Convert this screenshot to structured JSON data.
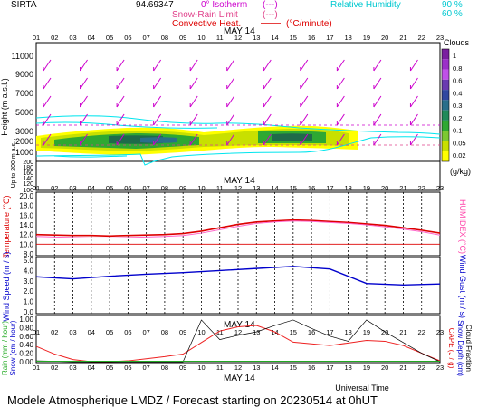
{
  "header": {
    "station": "SIRTA",
    "station_alt": "94.69347",
    "rh_label": "Relative Humidity",
    "rh_levels": [
      "90 %",
      "60 %"
    ],
    "legend_isotherm": "0° Isotherm",
    "legend_snow_rain": "Snow-Rain Limit",
    "legend_convective": "Convective Heat.",
    "legend_convective_unit": "(°C/minute)",
    "legend_iso_marker": "(---)",
    "legend_snow_marker": "(---)"
  },
  "footer": {
    "title": "Modele Atmospherique LMDZ / Forecast starting on 20230514 at 0hUT",
    "universal_time": "Universal Time"
  },
  "colors": {
    "rh_line": "#00e5ee",
    "isotherm": "#cc00cc",
    "snow_rain": "#e0408a",
    "convective": "#dd0000",
    "temperature": "#dd0000",
    "humidex": "#ff66cc",
    "wind_speed": "#0000cc",
    "rain": "#ee2222",
    "grid": "#000000"
  },
  "chart_data": [
    {
      "type": "heatmap",
      "panel": "clouds",
      "xlabel": "MAY 14",
      "x_hours": [
        "01",
        "02",
        "03",
        "04",
        "05",
        "06",
        "07",
        "08",
        "09",
        "10",
        "11",
        "12",
        "13",
        "14",
        "15",
        "16",
        "17",
        "18",
        "19",
        "20",
        "21",
        "22",
        "23"
      ],
      "ylabel": "Height (m a.s.l.)",
      "ylabel2": "Up to 200 m a.s.l.",
      "y_ticks_upper": [
        "11000",
        "9000",
        "7000",
        "5000",
        "3000",
        "2000",
        "1000"
      ],
      "y_ticks_lower": [
        "200",
        "180",
        "160",
        "140",
        "120",
        "100"
      ],
      "colorbar_title": "Clouds",
      "colorbar_unit": "(g/kg)",
      "colorbar_ticks": [
        "1",
        "0.8",
        "0.6",
        "0.4",
        "0.3",
        "0.2",
        "0.1",
        "0.05",
        "0.02"
      ],
      "colorbar_colors": [
        "#7a1fa0",
        "#9b30c8",
        "#c050e8",
        "#6a3ab0",
        "#3048a0",
        "#2a6e8a",
        "#1f8a5a",
        "#2ea832",
        "#7cc832",
        "#c8e000",
        "#ffff00"
      ],
      "cloud_base_m": 1000,
      "cloud_top_m": 2200,
      "isotherm_m": 2500,
      "wind_barb_rows": 5
    },
    {
      "type": "line",
      "panel": "temperature",
      "ylabel": "Temperature (°C)",
      "ylabel_right": "HUMIDEX (°C)",
      "y_ticks": [
        "20.0",
        "18.0",
        "16.0",
        "14.0",
        "12.0",
        "10.0",
        "8.0"
      ],
      "ylim": [
        8,
        20
      ],
      "x": [
        1,
        2,
        3,
        4,
        5,
        6,
        7,
        8,
        9,
        10,
        11,
        12,
        13,
        14,
        15,
        16,
        17,
        18,
        19,
        20,
        21,
        22,
        23
      ],
      "series": [
        {
          "name": "Temperature",
          "values": [
            12.0,
            11.9,
            11.8,
            11.8,
            11.7,
            11.8,
            11.9,
            12.0,
            12.2,
            12.7,
            13.4,
            14.1,
            14.6,
            14.8,
            15.0,
            14.9,
            14.7,
            14.5,
            14.2,
            13.9,
            13.4,
            12.9,
            12.3
          ]
        },
        {
          "name": "HUMIDEX",
          "values": [
            11.6,
            11.5,
            11.4,
            11.3,
            11.3,
            11.4,
            11.5,
            11.6,
            11.8,
            12.3,
            13.0,
            13.7,
            14.3,
            14.6,
            14.8,
            14.7,
            14.5,
            14.3,
            14.0,
            13.6,
            13.1,
            12.6,
            11.9
          ]
        }
      ],
      "reference_line": 10.0
    },
    {
      "type": "line",
      "panel": "wind",
      "ylabel": "Wind Speed (m / s)",
      "ylabel_right": "Wind Gust (m / s)",
      "y_ticks": [
        "5.0",
        "4.0",
        "3.0",
        "2.0",
        "1.0",
        "0.0"
      ],
      "ylim": [
        0,
        5
      ],
      "x": [
        1,
        3,
        5,
        7,
        9,
        11,
        13,
        15,
        17,
        19,
        21,
        23
      ],
      "series": [
        {
          "name": "Wind Speed",
          "values": [
            3.4,
            3.2,
            3.45,
            3.65,
            3.8,
            4.0,
            4.2,
            4.4,
            4.15,
            2.75,
            2.6,
            2.7
          ]
        }
      ]
    },
    {
      "type": "line",
      "panel": "precipitation",
      "xlabel": "MAY 14",
      "ylabel": "Rain (mm / hour)",
      "ylabel2": "Snow (cm / hour)",
      "ylabel_right": "CAPE (J / g)",
      "ylabel_right2": "Snow Depth (cm)",
      "ylabel_right3": "Cloud Fraction",
      "y_ticks": [
        "1.00",
        "0.80",
        "0.60",
        "0.40",
        "0.20",
        "0.00"
      ],
      "ylim": [
        0,
        1
      ],
      "x": [
        1,
        2,
        3,
        4,
        5,
        6,
        7,
        8,
        9,
        10,
        11,
        12,
        13,
        14,
        15,
        16,
        17,
        18,
        19,
        20,
        21,
        22,
        23
      ],
      "series": [
        {
          "name": "CAPE",
          "values": [
            0.36,
            0.18,
            0.05,
            0.0,
            0.0,
            0.02,
            0.07,
            0.12,
            0.18,
            0.45,
            0.72,
            0.82,
            0.85,
            0.7,
            0.46,
            0.42,
            0.38,
            0.44,
            0.5,
            0.48,
            0.38,
            0.2,
            0.02
          ]
        },
        {
          "name": "Cloud Fraction",
          "values": [
            0.02,
            0.01,
            0.0,
            0.0,
            0.0,
            0.0,
            0.0,
            0.0,
            0.0,
            0.98,
            0.52,
            0.62,
            0.7,
            0.85,
            0.98,
            0.78,
            0.6,
            0.48,
            0.98,
            0.7,
            0.45,
            0.2,
            0.0
          ]
        }
      ],
      "date_marks": [
        "MAY 14"
      ]
    }
  ]
}
